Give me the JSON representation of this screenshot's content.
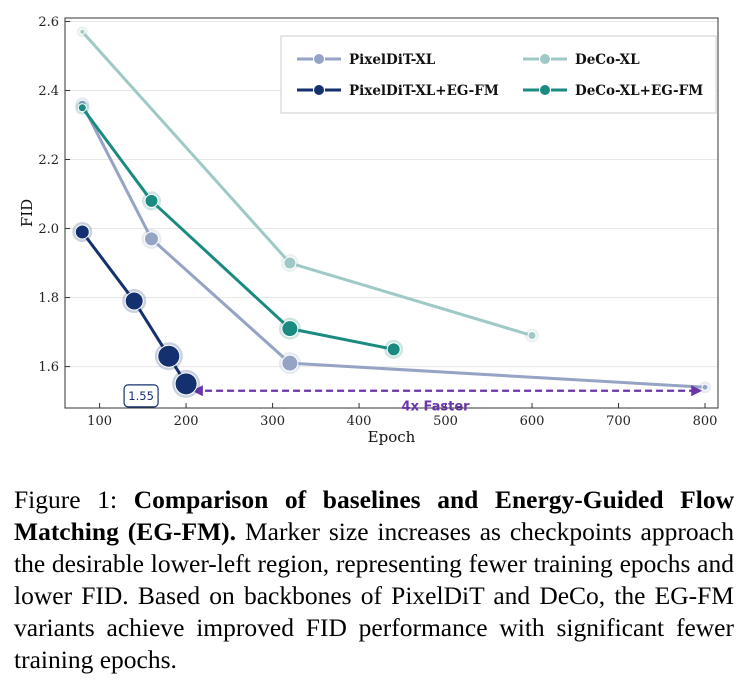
{
  "chart_data": {
    "type": "line",
    "xlabel": "Epoch",
    "ylabel": "FID",
    "xlim": [
      60,
      815
    ],
    "ylim": [
      1.48,
      2.61
    ],
    "xticks": [
      100,
      200,
      300,
      400,
      500,
      600,
      700,
      800
    ],
    "yticks": [
      1.6,
      1.8,
      2.0,
      2.2,
      2.4,
      2.6
    ],
    "ytick_labels": [
      "1.6",
      "1.8",
      "2.0",
      "2.2",
      "2.4",
      "2.6"
    ],
    "grid": "horizontal",
    "legend_position": "top-right",
    "series": [
      {
        "name": "PixelDiT-XL",
        "color": "#95a3c4",
        "x": [
          80,
          160,
          320,
          800
        ],
        "y": [
          2.36,
          1.97,
          1.61,
          1.54
        ],
        "marker_sizes": [
          4,
          7,
          8,
          3
        ]
      },
      {
        "name": "DeCo-XL",
        "color": "#9fc9c6",
        "x": [
          80,
          320,
          600
        ],
        "y": [
          2.57,
          1.9,
          1.69
        ],
        "marker_sizes": [
          2.5,
          6,
          4
        ]
      },
      {
        "name": "PixelDiT-XL+EG-FM",
        "color": "#14306e",
        "x": [
          80,
          140,
          180,
          200
        ],
        "y": [
          1.99,
          1.79,
          1.63,
          1.55
        ],
        "marker_sizes": [
          7,
          9,
          11,
          11
        ]
      },
      {
        "name": "DeCo-XL+EG-FM",
        "color": "#1b8a80",
        "x": [
          80,
          160,
          320,
          440
        ],
        "y": [
          2.35,
          2.08,
          1.71,
          1.65
        ],
        "marker_sizes": [
          4,
          6.5,
          8,
          6.5
        ]
      }
    ],
    "annotations": {
      "best_label": "1.55",
      "best_point": {
        "x": 200,
        "y": 1.55
      },
      "arrow_label": "4x Faster",
      "arrow_color": "#6a35a8",
      "arrow_from": {
        "x": 200,
        "y": 1.53
      },
      "arrow_to": {
        "x": 800,
        "y": 1.53
      }
    }
  },
  "caption": {
    "prefix": "Figure 1: ",
    "bold": "Comparison of baselines and Energy-Guided Flow Matching (EG-FM).",
    "text": " Marker size increases as checkpoints approach the desirable lower-left region, representing fewer training epochs and lower FID. Based on backbones of PixelDiT and DeCo, the EG-FM variants achieve improved FID performance with significant fewer training epochs."
  }
}
